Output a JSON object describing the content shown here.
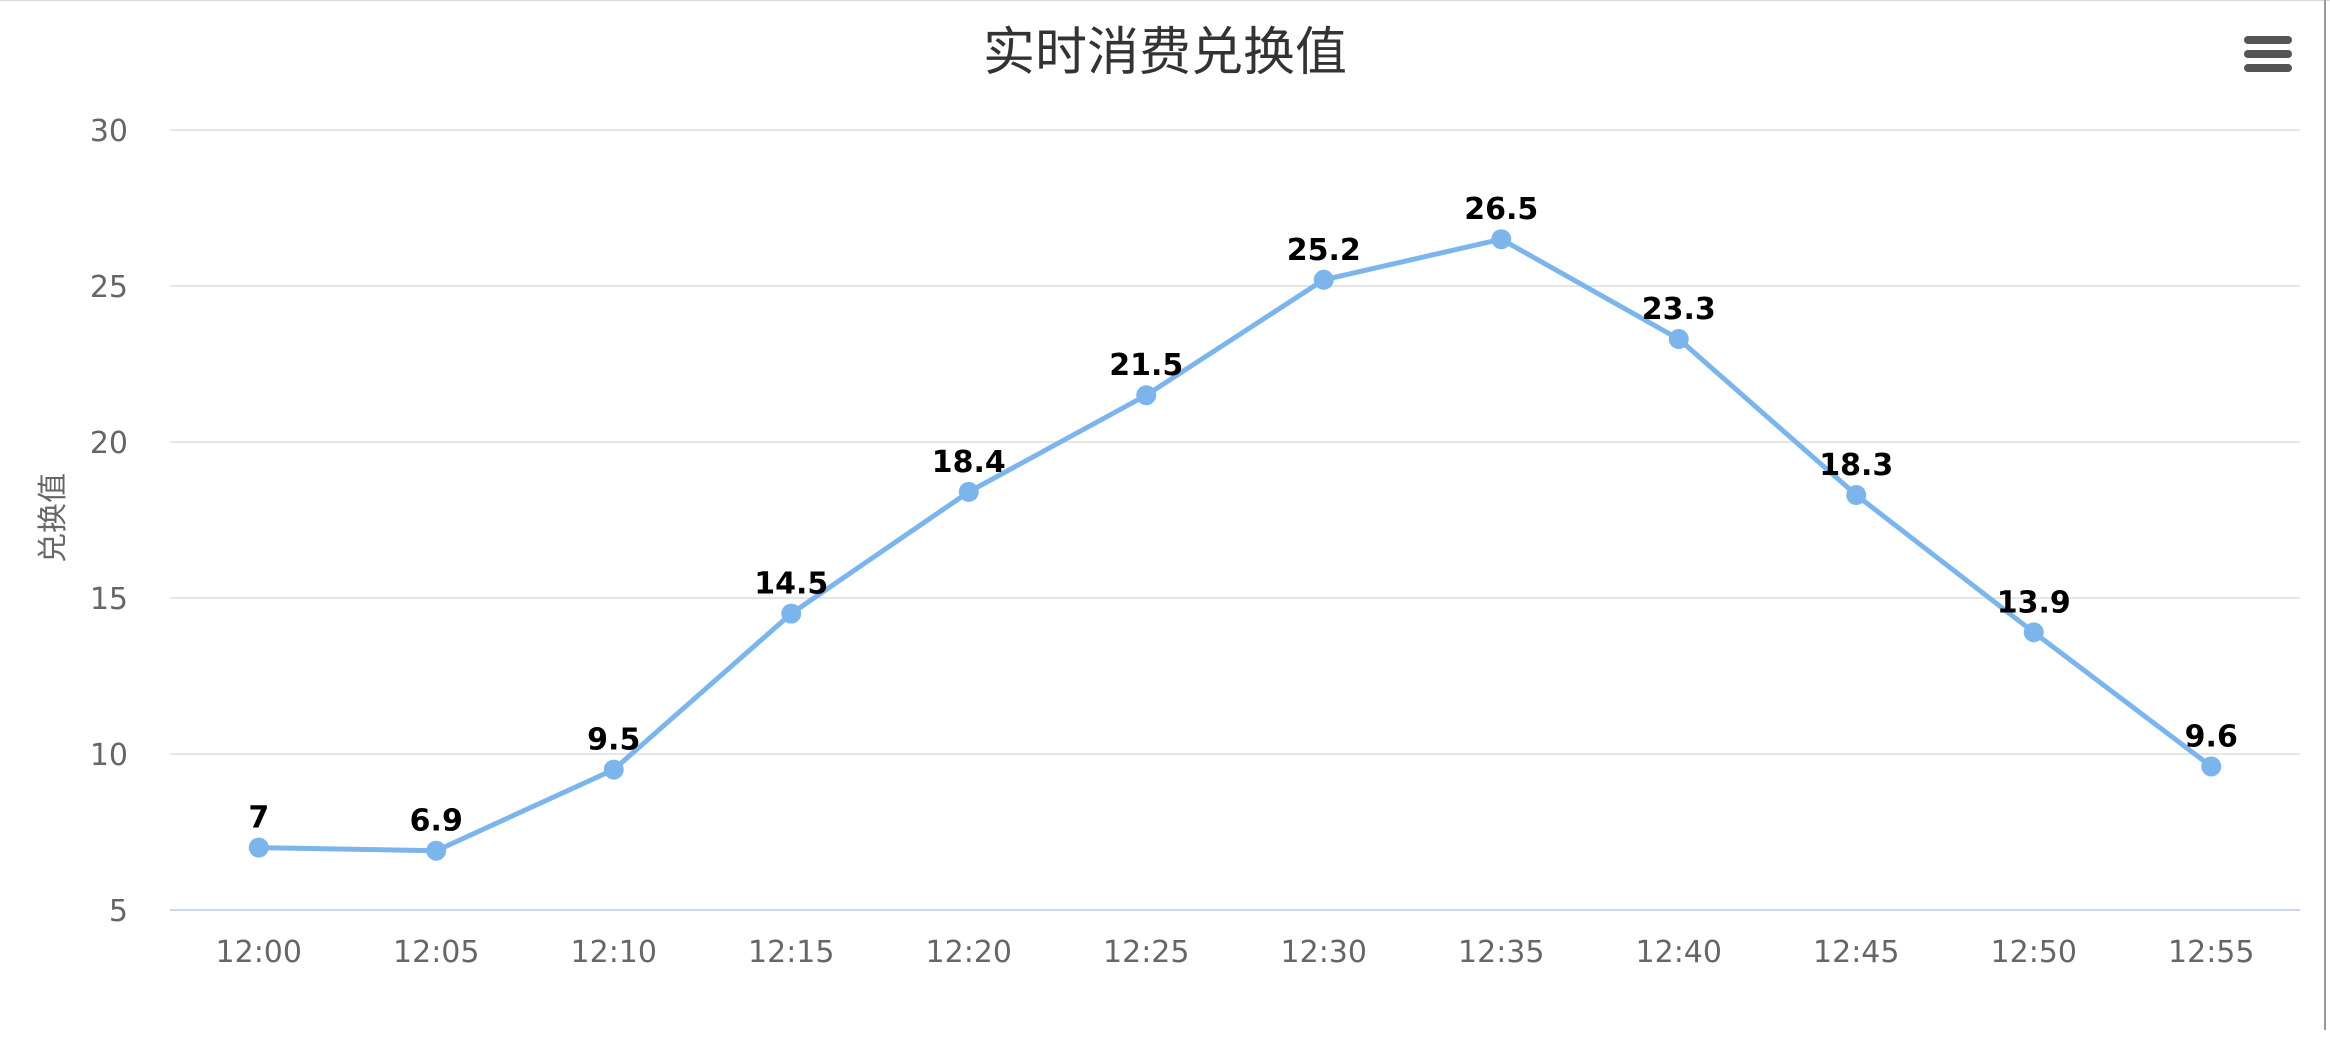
{
  "chart_data": {
    "type": "line",
    "title": "实时消费兑换值",
    "xlabel": "",
    "ylabel": "兑换值",
    "categories": [
      "12:00",
      "12:05",
      "12:10",
      "12:15",
      "12:20",
      "12:25",
      "12:30",
      "12:35",
      "12:40",
      "12:45",
      "12:50",
      "12:55"
    ],
    "series": [
      {
        "values": [
          7,
          6.9,
          9.5,
          14.5,
          18.4,
          21.5,
          25.2,
          26.5,
          23.3,
          18.3,
          13.9,
          9.6
        ],
        "color": "#7cb5ec"
      }
    ],
    "ylim": [
      5,
      30
    ],
    "yticks": [
      5,
      10,
      15,
      20,
      25,
      30
    ],
    "grid": true,
    "data_labels": true,
    "legend": "none"
  },
  "toolbar": {
    "menu_icon": "hamburger-menu-icon"
  },
  "colors": {
    "series": "#7cb5ec",
    "grid": "#e6e6e6",
    "axis_line": "#ccd6eb",
    "title": "#333333",
    "ticks": "#666666"
  }
}
